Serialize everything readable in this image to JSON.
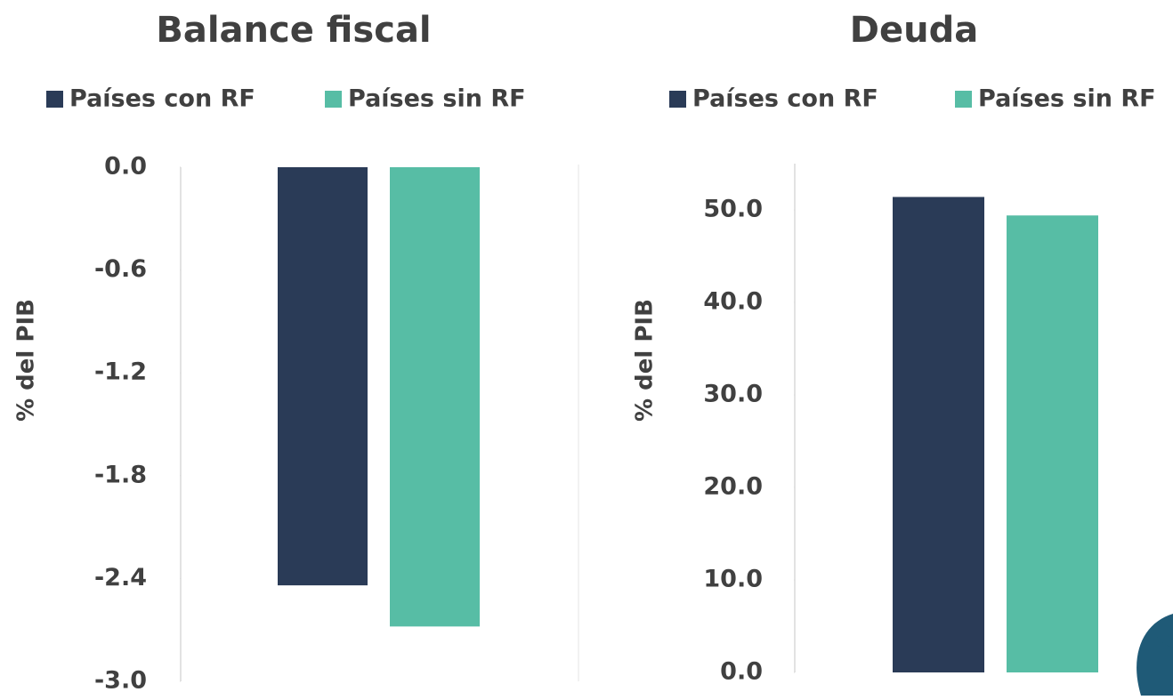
{
  "chart_data": [
    {
      "type": "bar",
      "title": "Balance fiscal",
      "y_label": "% del PIB",
      "categories": [
        null
      ],
      "series": [
        {
          "name": "Países con RF",
          "color": "#2a3b57",
          "values": [
            -2.44
          ]
        },
        {
          "name": "Países sin RF",
          "color": "#57bda5",
          "values": [
            -2.68
          ]
        }
      ],
      "ylim": [
        -3.0,
        0.0
      ],
      "yticks": [
        {
          "value": -3.0,
          "label": "-3.0"
        },
        {
          "value": -2.4,
          "label": "-2.4"
        },
        {
          "value": -1.8,
          "label": "-1.8"
        },
        {
          "value": -1.2,
          "label": "-1.2"
        },
        {
          "value": -0.6,
          "label": "-0.6"
        },
        {
          "value": 0,
          "label": "0.0"
        }
      ]
    },
    {
      "type": "bar",
      "title": "Deuda",
      "y_label": "% del PIB",
      "categories": [
        null
      ],
      "series": [
        {
          "name": "Países con RF",
          "color": "#2a3b57",
          "values": [
            51.4
          ]
        },
        {
          "name": "Países sin RF",
          "color": "#57bda5",
          "values": [
            49.4
          ]
        }
      ],
      "ylim": [
        0,
        55
      ],
      "yticks": [
        {
          "value": 0,
          "label": "0.0"
        },
        {
          "value": 10,
          "label": "10.0"
        },
        {
          "value": 20,
          "label": "20.0"
        },
        {
          "value": 30,
          "label": "30.0"
        },
        {
          "value": 40,
          "label": "40.0"
        },
        {
          "value": 50,
          "label": "50.0"
        }
      ]
    }
  ]
}
